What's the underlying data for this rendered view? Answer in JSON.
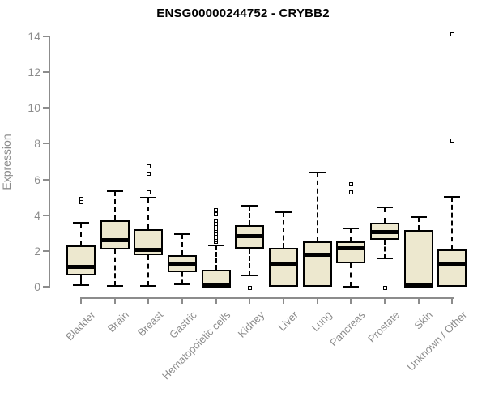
{
  "title": "ENSG00000244752 - CRYBB2",
  "chart_data": {
    "type": "boxplot",
    "title": "ENSG00000244752 - CRYBB2",
    "xlabel": "",
    "ylabel": "Expression",
    "ylim": [
      0,
      14
    ],
    "yticks": [
      0,
      2,
      4,
      6,
      8,
      10,
      12,
      14
    ],
    "grid": false,
    "legend": "none",
    "categories": [
      "Bladder",
      "Brain",
      "Breast",
      "Gastric",
      "Hematopoietic cells",
      "Kidney",
      "Liver",
      "Lung",
      "Pancreas",
      "Prostate",
      "Skin",
      "Unknown / Other"
    ],
    "series": [
      {
        "category": "Bladder",
        "low": 0.1,
        "q1": 0.65,
        "median": 1.1,
        "q3": 2.3,
        "high": 3.6,
        "outliers": [
          4.75,
          4.9
        ]
      },
      {
        "category": "Brain",
        "low": 0.05,
        "q1": 2.07,
        "median": 2.6,
        "q3": 3.73,
        "high": 5.35,
        "outliers": []
      },
      {
        "category": "Breast",
        "low": 0.05,
        "q1": 1.77,
        "median": 2.07,
        "q3": 3.2,
        "high": 5.0,
        "outliers": [
          5.3,
          6.3,
          6.75
        ]
      },
      {
        "category": "Gastric",
        "low": 0.15,
        "q1": 0.8,
        "median": 1.3,
        "q3": 1.75,
        "high": 2.95,
        "outliers": []
      },
      {
        "category": "Hematopoietic cells",
        "low": 0.0,
        "q1": 0.0,
        "median": 0.07,
        "q3": 0.95,
        "high": 2.3,
        "outliers": [
          2.5,
          2.62,
          2.74,
          2.86,
          2.98,
          3.1,
          3.22,
          3.36,
          3.52,
          3.7,
          4.05,
          4.26
        ]
      },
      {
        "category": "Kidney",
        "low": 0.63,
        "q1": 2.14,
        "median": 2.85,
        "q3": 3.46,
        "high": 4.52,
        "outliers": [
          -0.08
        ]
      },
      {
        "category": "Liver",
        "low": 0.0,
        "q1": 0.0,
        "median": 1.27,
        "q3": 2.17,
        "high": 4.15,
        "outliers": []
      },
      {
        "category": "Lung",
        "low": 0.0,
        "q1": 0.0,
        "median": 1.8,
        "q3": 2.55,
        "high": 6.4,
        "outliers": []
      },
      {
        "category": "Pancreas",
        "low": 0.02,
        "q1": 1.31,
        "median": 2.14,
        "q3": 2.52,
        "high": 3.28,
        "outliers": [
          5.3,
          5.75
        ]
      },
      {
        "category": "Prostate",
        "low": 1.57,
        "q1": 2.63,
        "median": 3.05,
        "q3": 3.58,
        "high": 4.44,
        "outliers": [
          -0.05
        ]
      },
      {
        "category": "Skin",
        "low": 0.0,
        "q1": 0.0,
        "median": 0.07,
        "q3": 3.16,
        "high": 3.88,
        "outliers": []
      },
      {
        "category": "Unknown / Other",
        "low": 0.0,
        "q1": 0.0,
        "median": 1.3,
        "q3": 2.1,
        "high": 5.05,
        "outliers": [
          8.2,
          14.1
        ]
      }
    ],
    "style": {
      "box_fill": "#EDE8CF",
      "box_border": "#000000",
      "median_color": "#000000",
      "whisker_color": "#000000",
      "axis_color": "#8C8C8C",
      "title_color": "#000000"
    }
  }
}
